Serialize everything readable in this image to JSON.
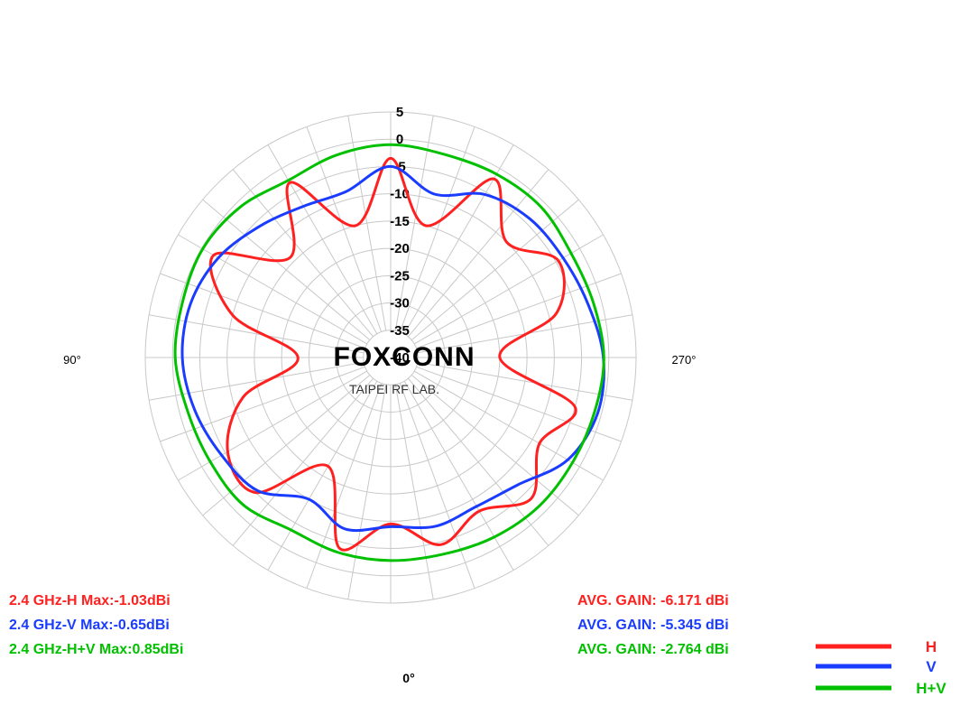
{
  "chart_data": {
    "type": "polar-line",
    "radial_axis": {
      "unit": "dB",
      "ticks": [
        "5",
        "0",
        "-5",
        "-10",
        "-15",
        "-20",
        "-25",
        "-30",
        "-35",
        "-40"
      ],
      "range": [
        -40,
        5
      ]
    },
    "angle_labels": [
      "0°",
      "90°",
      "270°"
    ],
    "angle_direction": "0° at bottom, 90° at left, 270° at right",
    "watermark": {
      "title": "FOXCONN",
      "subtitle": "TAIPEI RF LAB."
    },
    "angles": [
      0,
      15,
      30,
      45,
      60,
      75,
      90,
      105,
      120,
      135,
      150,
      165,
      180,
      195,
      210,
      225,
      240,
      255,
      270,
      285,
      300,
      315,
      330,
      345
    ],
    "series": [
      {
        "name": "H",
        "color": "#ff2020",
        "values": [
          -9.5,
          -3.8,
          -17,
          -5,
          -5.5,
          -12,
          -23,
          -10,
          -2.5,
          -14,
          -3,
          -15,
          -3.5,
          -15,
          -2.2,
          -10,
          -4.5,
          -8.5,
          -20,
          -5,
          -8.5,
          -3.5,
          -7.5,
          -4.5
        ]
      },
      {
        "name": "V",
        "color": "#1a3cff",
        "values": [
          -9,
          -7.5,
          -10,
          -5.5,
          -4.2,
          -2.8,
          -1.8,
          -2,
          -3.5,
          -6,
          -8,
          -8.5,
          -5,
          -9,
          -5.5,
          -4,
          -3.5,
          -2.5,
          -1,
          -0.7,
          -2.5,
          -7,
          -8.5,
          -8
        ]
      },
      {
        "name": "H+V",
        "color": "#00c000",
        "values": [
          -2.8,
          -3,
          -3.5,
          -1.8,
          -1.8,
          -1.5,
          -0.5,
          -0.5,
          -0.2,
          -1,
          -2.5,
          -1.6,
          -1,
          -1.5,
          -1.2,
          -1,
          -1.8,
          -1.5,
          -0.9,
          -1.3,
          -1.5,
          -1.5,
          -2,
          -2.7
        ]
      }
    ],
    "stats": [
      {
        "label": "2.4 GHz-H  Max:-1.03dBi",
        "avg": "AVG. GAIN: -6.171 dBi",
        "color": "#ff2020"
      },
      {
        "label": "2.4 GHz-V  Max:-0.65dBi",
        "avg": "AVG. GAIN: -5.345 dBi",
        "color": "#1a3cff"
      },
      {
        "label": "2.4 GHz-H+V  Max:0.85dBi",
        "avg": "AVG. GAIN: -2.764 dBi",
        "color": "#00c000"
      }
    ],
    "legend": [
      {
        "label": "H",
        "color": "#ff2020"
      },
      {
        "label": "V",
        "color": "#1a3cff"
      },
      {
        "label": "H+V",
        "color": "#00c000"
      }
    ],
    "grid": true,
    "legend_position": "bottom-right"
  }
}
